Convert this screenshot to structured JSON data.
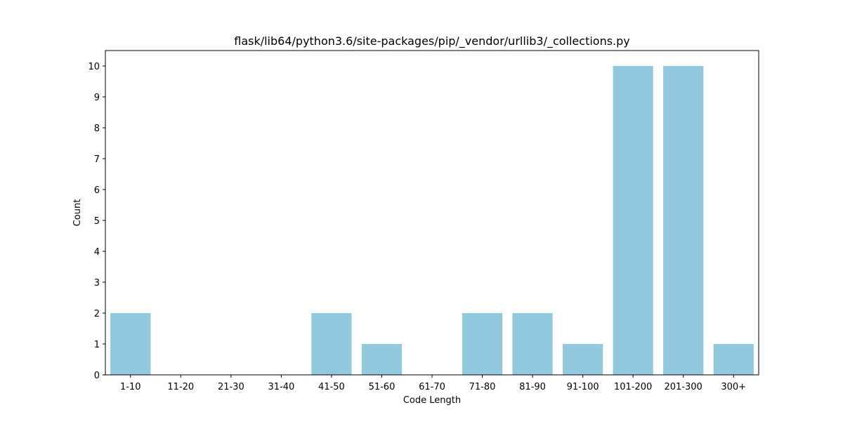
{
  "chart_data": {
    "type": "bar",
    "title": "flask/lib64/python3.6/site-packages/pip/_vendor/urllib3/_collections.py",
    "xlabel": "Code Length",
    "ylabel": "Count",
    "categories": [
      "1-10",
      "11-20",
      "21-30",
      "31-40",
      "41-50",
      "51-60",
      "61-70",
      "71-80",
      "81-90",
      "91-100",
      "101-200",
      "201-300",
      "300+"
    ],
    "values": [
      2,
      0,
      0,
      0,
      2,
      1,
      0,
      2,
      2,
      1,
      10,
      10,
      1
    ],
    "ylim": [
      0,
      10.5
    ],
    "yticks": [
      0,
      1,
      2,
      3,
      4,
      5,
      6,
      7,
      8,
      9,
      10
    ],
    "bar_color": "#92c9df",
    "grid": false,
    "legend": "none"
  }
}
